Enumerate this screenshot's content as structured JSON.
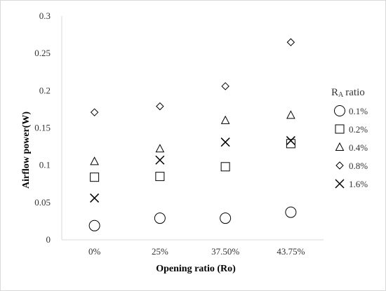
{
  "chart_data": {
    "type": "scatter",
    "categories": [
      "0%",
      "25%",
      "37.50%",
      "43.75%"
    ],
    "xlabel": "Opening ratio (Ro)",
    "ylabel": "Airflow power(W)",
    "ylim": [
      0,
      0.3
    ],
    "yticks": [
      "0",
      "0.05",
      "0.1",
      "0.15",
      "0.2",
      "0.25",
      "0.3"
    ],
    "grid": false,
    "legend": {
      "title_main": "R",
      "title_sub": "A",
      "title_rest": "ratio",
      "placement": "right"
    },
    "series": [
      {
        "name": "0.1%",
        "marker": "circle",
        "values": [
          0.019,
          0.029,
          0.029,
          0.037
        ]
      },
      {
        "name": "0.2%",
        "marker": "square",
        "values": [
          0.084,
          0.085,
          0.098,
          0.129
        ]
      },
      {
        "name": "0.4%",
        "marker": "triangle",
        "values": [
          0.105,
          0.122,
          0.16,
          0.167
        ]
      },
      {
        "name": "0.8%",
        "marker": "diamond",
        "values": [
          0.171,
          0.179,
          0.206,
          0.265
        ]
      },
      {
        "name": "1.6%",
        "marker": "cross",
        "values": [
          0.056,
          0.107,
          0.131,
          0.133
        ]
      }
    ]
  }
}
